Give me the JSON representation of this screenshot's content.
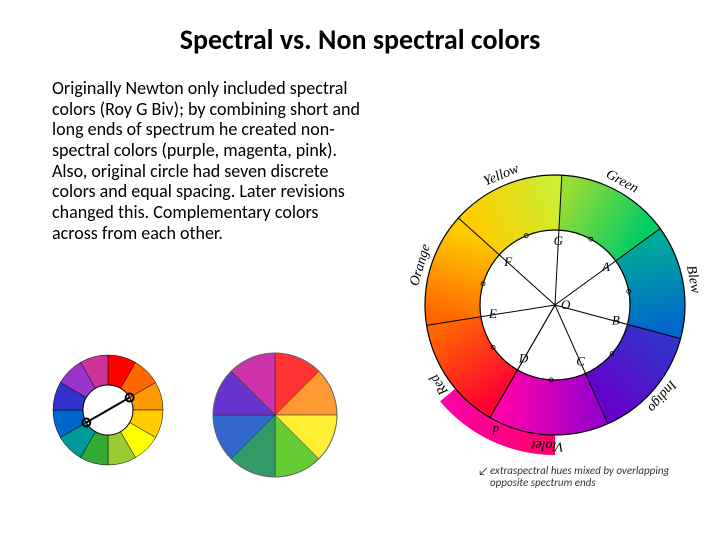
{
  "title": "Spectral vs. Non spectral colors",
  "body": "Originally Newton only included spectral colors (Roy G Biv); by combining short and long ends of spectrum he created non-spectral colors (purple, magenta, pink). Also, original circle had seven discrete colors and equal spacing. Later revisions changed this. Complementary colors across from each other.",
  "caption": "extraspectral hues mixed by overlapping opposite spectrum ends",
  "wheel1": {
    "type": "color-wheel-donut-12",
    "outer_r": 55,
    "inner_r": 25,
    "segments": [
      "#ff0000",
      "#ff6600",
      "#ff9900",
      "#ffcc00",
      "#ffff00",
      "#99cc33",
      "#33aa33",
      "#009999",
      "#0066cc",
      "#3333cc",
      "#9933cc",
      "#cc3399"
    ],
    "complement_line": {
      "from_angle": 60,
      "to_angle": 240,
      "color": "#000000"
    }
  },
  "wheel2": {
    "type": "pie-8",
    "r": 62,
    "segments": [
      "#ff3333",
      "#ff9933",
      "#ffee33",
      "#66cc33",
      "#339966",
      "#3366cc",
      "#6633cc",
      "#cc33aa"
    ]
  },
  "newton": {
    "type": "newton-wheel-7",
    "outer_r": 130,
    "inner_r": 75,
    "background": "#ffffff",
    "stroke": "#000000",
    "segments": [
      {
        "label": "Red",
        "letter": "D",
        "color_gradient": [
          "#ff0033",
          "#ff6600"
        ],
        "angle": 51
      },
      {
        "label": "Orange",
        "letter": "E",
        "color_gradient": [
          "#ff6600",
          "#ffcc00"
        ],
        "angle": 51
      },
      {
        "label": "Yellow",
        "letter": "F",
        "color_gradient": [
          "#ffcc00",
          "#ccee33"
        ],
        "angle": 51
      },
      {
        "label": "Green",
        "letter": "G",
        "color_gradient": [
          "#99dd33",
          "#00cc66"
        ],
        "angle": 51
      },
      {
        "label": "Blew",
        "letter": "A",
        "color_gradient": [
          "#00aa99",
          "#0066cc"
        ],
        "angle": 51
      },
      {
        "label": "Indigo",
        "letter": "B",
        "color_gradient": [
          "#3333cc",
          "#6600cc"
        ],
        "angle": 51
      },
      {
        "label": "Violet",
        "letter": "C",
        "color_gradient": [
          "#9900cc",
          "#ff00aa"
        ],
        "angle": 54
      }
    ],
    "center_label": "O",
    "extraspectral_wedge": {
      "start_angle": 180,
      "end_angle": 230,
      "outer_r": 150,
      "label": "p",
      "gradient": [
        "#ff00aa",
        "#ff0066"
      ]
    },
    "label_font": "italic 14px serif"
  },
  "fonts": {
    "title_pt": 28,
    "body_pt": 18,
    "caption_pt": 11
  },
  "colors": {
    "page_bg": "#ffffff",
    "text": "#000000",
    "caption": "#333333"
  }
}
